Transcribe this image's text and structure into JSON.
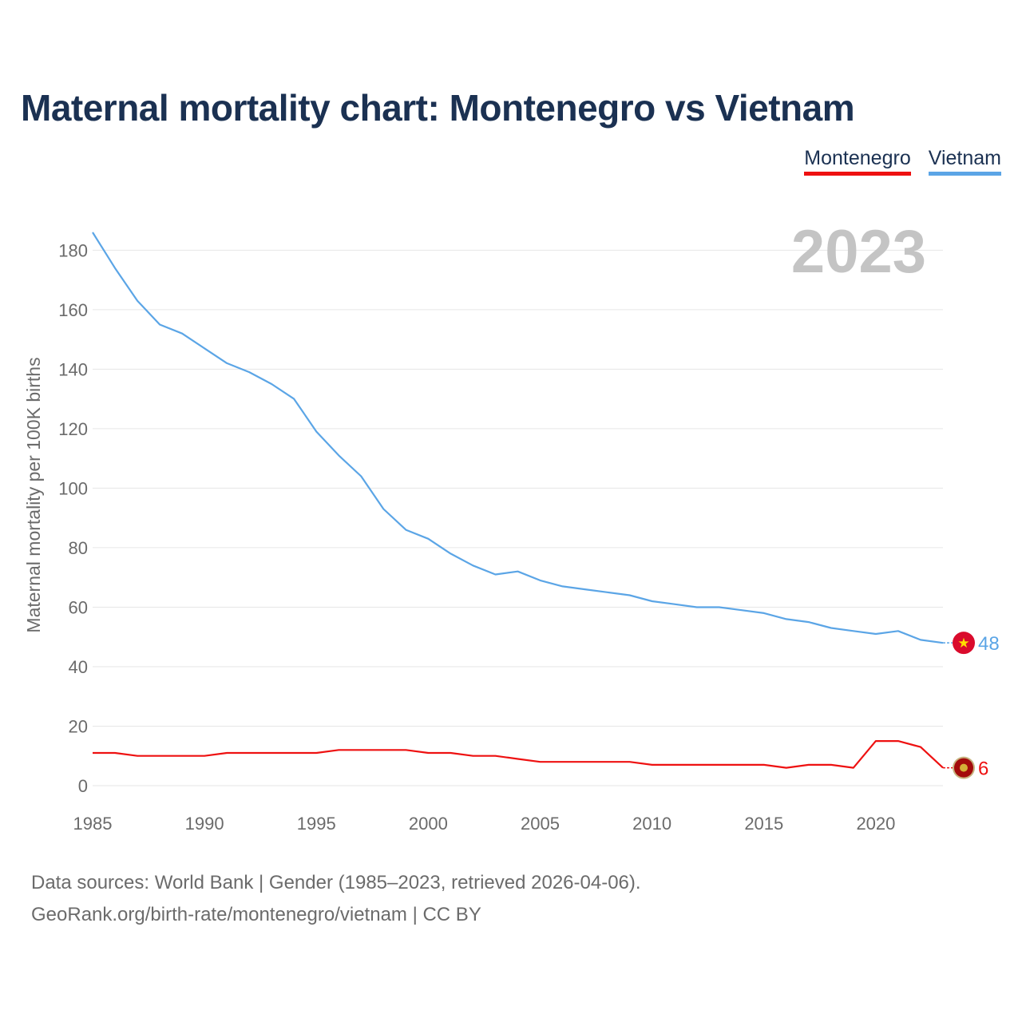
{
  "title": "Maternal mortality chart: Montenegro vs Vietnam",
  "legend": [
    {
      "name": "Montenegro",
      "color": "#ee1111"
    },
    {
      "name": "Vietnam",
      "color": "#5ba5e6"
    }
  ],
  "footer": {
    "line1": "Data sources: World Bank | Gender (1985–2023, retrieved 2026-04-06).",
    "line2": "GeoRank.org/birth-rate/montenegro/vietnam | CC BY"
  },
  "chart_data": {
    "type": "line",
    "title": "Maternal mortality chart: Montenegro vs Vietnam",
    "xlabel": "",
    "ylabel": "Maternal mortality per 100K births",
    "year_label": "2023",
    "xlim": [
      1985,
      2023
    ],
    "ylim": [
      0,
      186
    ],
    "x_ticks": [
      1985,
      1990,
      1995,
      2000,
      2005,
      2010,
      2015,
      2020
    ],
    "y_ticks": [
      0,
      20,
      40,
      60,
      80,
      100,
      120,
      140,
      160,
      180
    ],
    "x": [
      1985,
      1986,
      1987,
      1988,
      1989,
      1990,
      1991,
      1992,
      1993,
      1994,
      1995,
      1996,
      1997,
      1998,
      1999,
      2000,
      2001,
      2002,
      2003,
      2004,
      2005,
      2006,
      2007,
      2008,
      2009,
      2010,
      2011,
      2012,
      2013,
      2014,
      2015,
      2016,
      2017,
      2018,
      2019,
      2020,
      2021,
      2022,
      2023
    ],
    "series": [
      {
        "name": "Montenegro",
        "color": "#ee1111",
        "end_label": "6",
        "values": [
          11,
          11,
          10,
          10,
          10,
          10,
          11,
          11,
          11,
          11,
          11,
          12,
          12,
          12,
          12,
          11,
          11,
          10,
          10,
          9,
          8,
          8,
          8,
          8,
          8,
          7,
          7,
          7,
          7,
          7,
          7,
          6,
          7,
          7,
          6,
          15,
          15,
          13,
          6
        ]
      },
      {
        "name": "Vietnam",
        "color": "#5ba5e6",
        "end_label": "48",
        "values": [
          186,
          174,
          163,
          155,
          152,
          147,
          142,
          139,
          135,
          130,
          119,
          111,
          104,
          93,
          86,
          83,
          78,
          74,
          71,
          72,
          69,
          67,
          66,
          65,
          64,
          62,
          61,
          60,
          60,
          59,
          58,
          56,
          55,
          53,
          52,
          51,
          52,
          49,
          48
        ]
      }
    ]
  }
}
